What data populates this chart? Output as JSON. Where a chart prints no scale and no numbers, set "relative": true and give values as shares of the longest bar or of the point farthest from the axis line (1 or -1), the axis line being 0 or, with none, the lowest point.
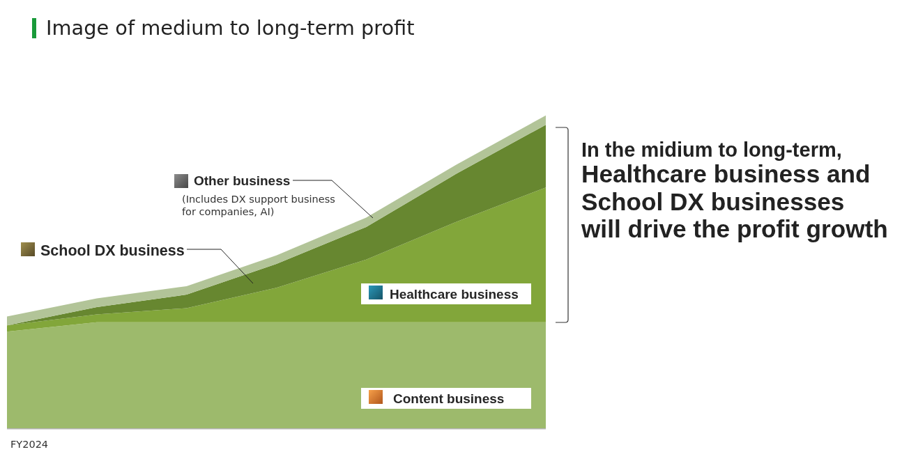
{
  "chart_data": {
    "type": "area",
    "stacked": true,
    "relative": true,
    "title": "Image of medium to long-term profit",
    "legend": "center",
    "categories": [
      null,
      null,
      null,
      null,
      null,
      null,
      null
    ],
    "series": [
      {
        "name": "Content business",
        "color": "#9dba6c",
        "values": [
          0.31,
          0.34,
          0.34,
          0.34,
          0.34,
          0.34,
          0.34
        ]
      },
      {
        "name": "Healthcare business",
        "color": "#82a63a",
        "values": [
          0.02,
          0.025,
          0.045,
          0.11,
          0.2,
          0.32,
          0.43
        ]
      },
      {
        "name": "School DX business",
        "color": "#678730",
        "values": [
          0,
          0.023,
          0.043,
          0.076,
          0.104,
          0.153,
          0.2
        ]
      },
      {
        "name": "Other business",
        "color": "#b2c498",
        "values": [
          0.028,
          0.028,
          0.027,
          0.027,
          0.03,
          0.029,
          0.03
        ]
      }
    ],
    "annotations": [
      "(Includes DX support business\nfor companies, AI)",
      "In the midium to long-term,",
      "Healthcare business and\nSchool DX businesses\nwill drive the profit growth",
      "FY2024"
    ]
  }
}
